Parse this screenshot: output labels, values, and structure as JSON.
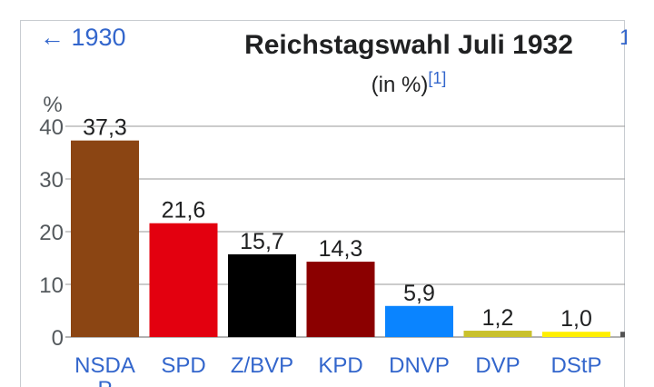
{
  "nav": {
    "back_label": "← 1930",
    "next_label": "1"
  },
  "chart_data": {
    "type": "bar",
    "title": "Reichstagswahl Juli 1932",
    "subtitle": "(in %)",
    "footnote": "[1]",
    "ylabel": "%",
    "ylim": [
      0,
      40
    ],
    "yticks": [
      0,
      10,
      20,
      30,
      40
    ],
    "grid": true,
    "categories": [
      "NSDAP",
      "SPD",
      "Z/BVP",
      "KPD",
      "DNVP",
      "DVP",
      "DStP"
    ],
    "category_labels": [
      "NSDA P",
      "SPD",
      "Z/BVP",
      "KPD",
      "DNVP",
      "DVP",
      "DStP"
    ],
    "values": [
      37.3,
      21.6,
      15.7,
      14.3,
      5.9,
      1.2,
      1.0
    ],
    "value_labels": [
      "37,3",
      "21,6",
      "15,7",
      "14,3",
      "5,9",
      "1,2",
      "1,0"
    ],
    "colors": [
      "#8B4513",
      "#E3000F",
      "#000000",
      "#8B0000",
      "#0a84ff",
      "#c9c12c",
      "#ffef00"
    ]
  }
}
